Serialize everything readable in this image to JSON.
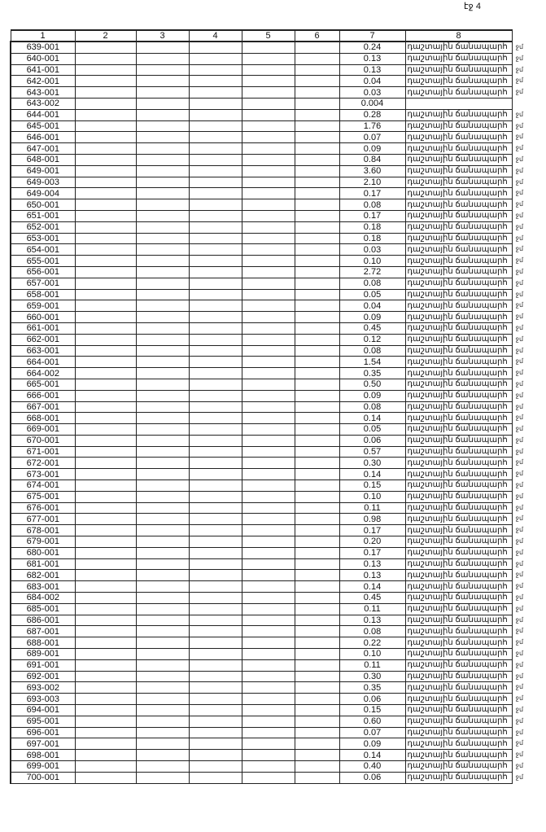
{
  "page_number": "էջ 4",
  "columns": [
    "1",
    "2",
    "3",
    "4",
    "5",
    "6",
    "7",
    "8"
  ],
  "row_text": "դաշտային ճանապարհ",
  "margin_note": "ջմ",
  "rows": [
    [
      "639-001",
      "0.24",
      true
    ],
    [
      "640-001",
      "0.13",
      true
    ],
    [
      "641-001",
      "0.13",
      true
    ],
    [
      "642-001",
      "0.04",
      true
    ],
    [
      "643-001",
      "0.03",
      true
    ],
    [
      "643-002",
      "0.004",
      false
    ],
    [
      "644-001",
      "0.28",
      true
    ],
    [
      "645-001",
      "1.76",
      true
    ],
    [
      "646-001",
      "0.07",
      true
    ],
    [
      "647-001",
      "0.09",
      true
    ],
    [
      "648-001",
      "0.84",
      true
    ],
    [
      "649-001",
      "3.60",
      true
    ],
    [
      "649-003",
      "2.10",
      true
    ],
    [
      "649-004",
      "0.17",
      true
    ],
    [
      "650-001",
      "0.08",
      true
    ],
    [
      "651-001",
      "0.17",
      true
    ],
    [
      "652-001",
      "0.18",
      true
    ],
    [
      "653-001",
      "0.18",
      true
    ],
    [
      "654-001",
      "0.03",
      true
    ],
    [
      "655-001",
      "0.10",
      true
    ],
    [
      "656-001",
      "2.72",
      true
    ],
    [
      "657-001",
      "0.08",
      true
    ],
    [
      "658-001",
      "0.05",
      true
    ],
    [
      "659-001",
      "0.04",
      true
    ],
    [
      "660-001",
      "0.09",
      true
    ],
    [
      "661-001",
      "0.45",
      true
    ],
    [
      "662-001",
      "0.12",
      true
    ],
    [
      "663-001",
      "0.08",
      true
    ],
    [
      "664-001",
      "1.54",
      true
    ],
    [
      "664-002",
      "0.35",
      true
    ],
    [
      "665-001",
      "0.50",
      true
    ],
    [
      "666-001",
      "0.09",
      true
    ],
    [
      "667-001",
      "0.08",
      true
    ],
    [
      "668-001",
      "0.14",
      true
    ],
    [
      "669-001",
      "0.05",
      true
    ],
    [
      "670-001",
      "0.06",
      true
    ],
    [
      "671-001",
      "0.57",
      true
    ],
    [
      "672-001",
      "0.30",
      true
    ],
    [
      "673-001",
      "0.14",
      true
    ],
    [
      "674-001",
      "0.15",
      true
    ],
    [
      "675-001",
      "0.10",
      true
    ],
    [
      "676-001",
      "0.11",
      true
    ],
    [
      "677-001",
      "0.98",
      true
    ],
    [
      "678-001",
      "0.17",
      true
    ],
    [
      "679-001",
      "0.20",
      true
    ],
    [
      "680-001",
      "0.17",
      true
    ],
    [
      "681-001",
      "0.13",
      true
    ],
    [
      "682-001",
      "0.13",
      true
    ],
    [
      "683-001",
      "0.14",
      true
    ],
    [
      "684-002",
      "0.45",
      true
    ],
    [
      "685-001",
      "0.11",
      true
    ],
    [
      "686-001",
      "0.13",
      true
    ],
    [
      "687-001",
      "0.08",
      true
    ],
    [
      "688-001",
      "0.22",
      true
    ],
    [
      "689-001",
      "0.10",
      true
    ],
    [
      "691-001",
      "0.11",
      true
    ],
    [
      "692-001",
      "0.30",
      true
    ],
    [
      "693-002",
      "0.35",
      true
    ],
    [
      "693-003",
      "0.06",
      true
    ],
    [
      "694-001",
      "0.15",
      true
    ],
    [
      "695-001",
      "0.60",
      true
    ],
    [
      "696-001",
      "0.07",
      true
    ],
    [
      "697-001",
      "0.09",
      true
    ],
    [
      "698-001",
      "0.14",
      true
    ],
    [
      "699-001",
      "0.40",
      true
    ],
    [
      "700-001",
      "0.06",
      true
    ]
  ]
}
